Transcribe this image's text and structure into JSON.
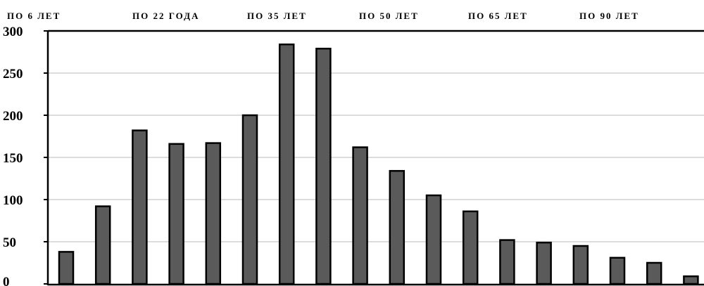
{
  "chart_data": {
    "type": "bar",
    "title": "",
    "xlabel": "",
    "ylabel": "",
    "top_labels": [
      "ПО 6 ЛЕТ",
      "ПО 22 ГОДА",
      "ПО 35 ЛЕТ",
      "ПО 50 ЛЕТ",
      "ПО 65 ЛЕТ",
      "ПО 90 ЛЕТ"
    ],
    "values": [
      38,
      92,
      182,
      166,
      167,
      200,
      284,
      279,
      162,
      134,
      105,
      86,
      52,
      49,
      45,
      31,
      25,
      9
    ],
    "ylim": [
      0,
      300
    ],
    "yticks": [
      0,
      50,
      100,
      150,
      200,
      250,
      300
    ],
    "grid": true,
    "colors": {
      "bar": "#5a5a5a",
      "bar_edge": "#000000",
      "grid": "#d0d0d0",
      "axis": "#000000"
    }
  }
}
